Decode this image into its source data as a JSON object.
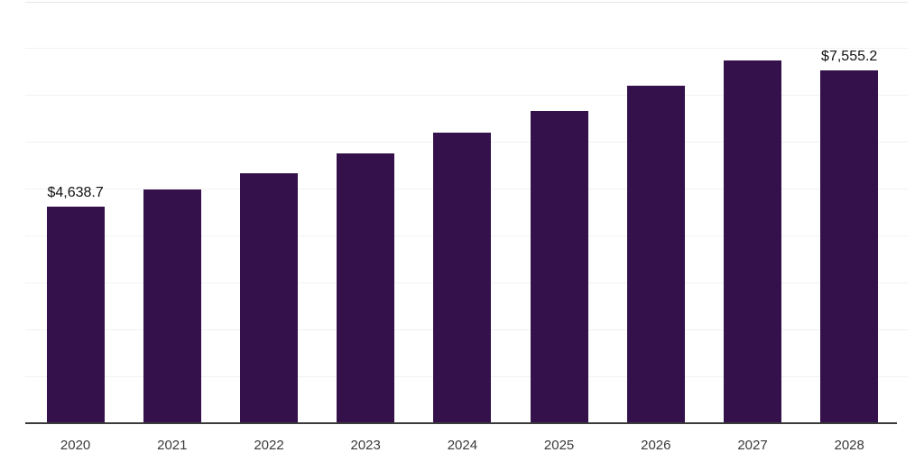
{
  "chart_data": {
    "type": "bar",
    "title": "",
    "xlabel": "",
    "ylabel": "",
    "categories": [
      "2020",
      "2021",
      "2022",
      "2023",
      "2024",
      "2025",
      "2026",
      "2027",
      "2028"
    ],
    "values": [
      4638.7,
      5000,
      5360,
      5770,
      6210,
      6690,
      7210,
      7750,
      7555.2
    ],
    "bar_labels": [
      "$4,638.7",
      "",
      "",
      "",
      "",
      "",
      "",
      "",
      "$7,555.2"
    ],
    "labeled_points": [
      {
        "category": "2020",
        "label": "$4,638.7",
        "value": 4638.7
      },
      {
        "category": "2028",
        "label": "$7,555.2",
        "value": 7555.2
      }
    ],
    "ylim": [
      0,
      9000
    ],
    "grid_step": 1000,
    "grid": "horizontal",
    "y_tick_labels_visible": false,
    "legend": false
  },
  "style": {
    "bar_color": "#35114C",
    "grid_color": "#f2f2f2",
    "top_line_color": "#e7e7e7",
    "axis_color": "#3b3b3b",
    "value_label_color": "#111111",
    "tick_label_color": "#3a3a3a",
    "background_color": "#ffffff"
  }
}
